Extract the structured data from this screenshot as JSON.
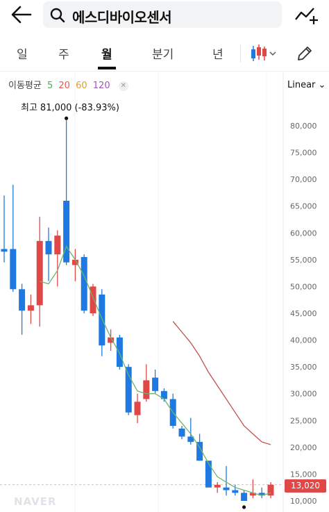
{
  "header": {
    "back_icon": "arrow-left-icon",
    "search_icon": "search-icon",
    "search_value": "에스디바이오센서",
    "compare_icon": "trend-compare-icon"
  },
  "tabs": [
    {
      "label": "일",
      "active": false
    },
    {
      "label": "주",
      "active": false
    },
    {
      "label": "월",
      "active": true
    },
    {
      "label": "분기",
      "active": false
    },
    {
      "label": "년",
      "active": false
    }
  ],
  "toolbar": {
    "chart_type_icon": "candlestick-icon",
    "edit_icon": "pencil-icon"
  },
  "moving_average": {
    "label": "이동평균",
    "periods": [
      {
        "label": "5",
        "color": "#4caf50"
      },
      {
        "label": "20",
        "color": "#e05a47"
      },
      {
        "label": "60",
        "color": "#e0a020"
      },
      {
        "label": "120",
        "color": "#9b59b6"
      }
    ],
    "close_icon": "close-icon"
  },
  "scale_label": "Linear",
  "high_annotation": {
    "label": "최고",
    "value": "81,000 (-83.93%)"
  },
  "current_price": "13,020",
  "watermark": "NAVER",
  "colors": {
    "up": "#e04848",
    "down": "#1e7ae0",
    "ma5": "#6db36d",
    "ma20": "#c05050"
  },
  "chart_data": {
    "type": "candlestick",
    "y_ticks": [
      "10,000",
      "15,000",
      "20,000",
      "25,000",
      "30,000",
      "35,000",
      "40,000",
      "45,000",
      "50,000",
      "55,000",
      "60,000",
      "65,000",
      "70,000",
      "75,000",
      "80,000"
    ],
    "ylim": [
      8500,
      85000
    ],
    "candles": [
      {
        "o": 57000,
        "h": 67000,
        "l": 54500,
        "c": 56500
      },
      {
        "o": 57000,
        "h": 69000,
        "l": 49000,
        "c": 49500
      },
      {
        "o": 49500,
        "h": 50500,
        "l": 41000,
        "c": 45500
      },
      {
        "o": 45500,
        "h": 48500,
        "l": 43000,
        "c": 46500
      },
      {
        "o": 46500,
        "h": 63000,
        "l": 42500,
        "c": 58500
      },
      {
        "o": 58500,
        "h": 61000,
        "l": 51000,
        "c": 56000
      },
      {
        "o": 56000,
        "h": 60500,
        "l": 50000,
        "c": 59500
      },
      {
        "o": 66000,
        "h": 81000,
        "l": 54000,
        "c": 54500
      },
      {
        "o": 54000,
        "h": 57000,
        "l": 51000,
        "c": 55000
      },
      {
        "o": 55500,
        "h": 56000,
        "l": 45000,
        "c": 45500
      },
      {
        "o": 45000,
        "h": 50500,
        "l": 44500,
        "c": 50000
      },
      {
        "o": 48500,
        "h": 49500,
        "l": 37000,
        "c": 39000
      },
      {
        "o": 39500,
        "h": 42000,
        "l": 38000,
        "c": 40500
      },
      {
        "o": 40500,
        "h": 41000,
        "l": 34500,
        "c": 35000
      },
      {
        "o": 35000,
        "h": 35500,
        "l": 26000,
        "c": 26500
      },
      {
        "o": 26000,
        "h": 30000,
        "l": 24500,
        "c": 28500
      },
      {
        "o": 29000,
        "h": 35500,
        "l": 28500,
        "c": 32500
      },
      {
        "o": 33000,
        "h": 34500,
        "l": 30000,
        "c": 30500
      },
      {
        "o": 30500,
        "h": 31000,
        "l": 28500,
        "c": 29000
      },
      {
        "o": 29000,
        "h": 30000,
        "l": 23500,
        "c": 24000
      },
      {
        "o": 23500,
        "h": 24000,
        "l": 21500,
        "c": 22000
      },
      {
        "o": 22000,
        "h": 25500,
        "l": 20500,
        "c": 21000
      },
      {
        "o": 21000,
        "h": 22500,
        "l": 17500,
        "c": 17500
      },
      {
        "o": 17500,
        "h": 17500,
        "l": 12500,
        "c": 12500
      },
      {
        "o": 12500,
        "h": 13500,
        "l": 11500,
        "c": 13000
      },
      {
        "o": 12500,
        "h": 16500,
        "l": 11000,
        "c": 12000
      },
      {
        "o": 12000,
        "h": 13000,
        "l": 11000,
        "c": 11500
      },
      {
        "o": 11500,
        "h": 12000,
        "l": 10000,
        "c": 10000
      },
      {
        "o": 11000,
        "h": 14000,
        "l": 10500,
        "c": 11500
      },
      {
        "o": 11500,
        "h": 12500,
        "l": 10500,
        "c": 11000
      },
      {
        "o": 11000,
        "h": 13500,
        "l": 10500,
        "c": 13020
      }
    ],
    "ma5": [
      [
        4,
        51000
      ],
      [
        5,
        50500
      ],
      [
        6,
        53000
      ],
      [
        7,
        57500
      ],
      [
        8,
        55000
      ],
      [
        9,
        52000
      ],
      [
        10,
        48000
      ],
      [
        11,
        44000
      ],
      [
        12,
        40500
      ],
      [
        13,
        37500
      ],
      [
        14,
        33500
      ],
      [
        15,
        30500
      ],
      [
        16,
        30000
      ],
      [
        17,
        30000
      ],
      [
        18,
        29000
      ],
      [
        19,
        26500
      ],
      [
        20,
        24500
      ],
      [
        21,
        22500
      ],
      [
        22,
        20000
      ],
      [
        23,
        17000
      ],
      [
        24,
        14500
      ],
      [
        25,
        13500
      ],
      [
        26,
        12500
      ],
      [
        27,
        12000
      ],
      [
        28,
        11500
      ],
      [
        29,
        11000
      ],
      [
        30,
        11500
      ]
    ],
    "ma20": [
      [
        19,
        43500
      ],
      [
        20,
        41500
      ],
      [
        21,
        39500
      ],
      [
        22,
        37000
      ],
      [
        23,
        34000
      ],
      [
        24,
        31500
      ],
      [
        25,
        29000
      ],
      [
        26,
        26500
      ],
      [
        27,
        24000
      ],
      [
        28,
        22500
      ],
      [
        29,
        21000
      ],
      [
        30,
        20500
      ]
    ],
    "high_index": 7,
    "low_index": 27
  }
}
